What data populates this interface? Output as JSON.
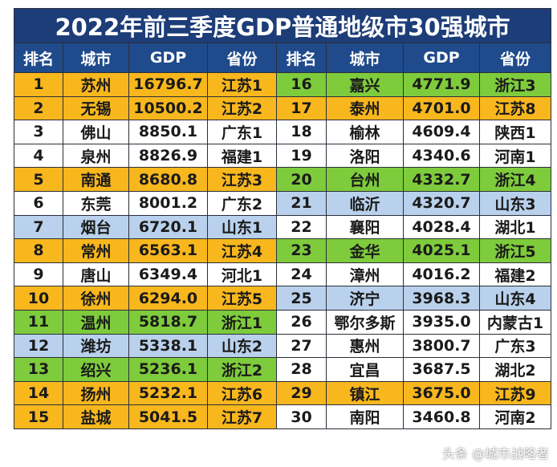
{
  "title": "2022年前三季度GDP普通地级市30强城市",
  "headers": [
    "排名",
    "城市",
    "GDP",
    "省份",
    "排名",
    "城市",
    "GDP",
    "省份"
  ],
  "colors": {
    "o": "#f8b71d",
    "g": "#7ecb3c",
    "b": "#b9d1ec",
    "w": "#ffffff"
  },
  "left": [
    {
      "rank": "1",
      "city": "苏州",
      "gdp": "16796.7",
      "prov": "江苏1",
      "color": "o"
    },
    {
      "rank": "2",
      "city": "无锡",
      "gdp": "10500.2",
      "prov": "江苏2",
      "color": "o"
    },
    {
      "rank": "3",
      "city": "佛山",
      "gdp": "8850.1",
      "prov": "广东1",
      "color": "w"
    },
    {
      "rank": "4",
      "city": "泉州",
      "gdp": "8826.9",
      "prov": "福建1",
      "color": "w"
    },
    {
      "rank": "5",
      "city": "南通",
      "gdp": "8680.8",
      "prov": "江苏3",
      "color": "o"
    },
    {
      "rank": "6",
      "city": "东莞",
      "gdp": "8001.2",
      "prov": "广东2",
      "color": "w"
    },
    {
      "rank": "7",
      "city": "烟台",
      "gdp": "6720.1",
      "prov": "山东1",
      "color": "b"
    },
    {
      "rank": "8",
      "city": "常州",
      "gdp": "6563.1",
      "prov": "江苏4",
      "color": "o"
    },
    {
      "rank": "9",
      "city": "唐山",
      "gdp": "6349.4",
      "prov": "河北1",
      "color": "w"
    },
    {
      "rank": "10",
      "city": "徐州",
      "gdp": "6294.0",
      "prov": "江苏5",
      "color": "o"
    },
    {
      "rank": "11",
      "city": "温州",
      "gdp": "5818.7",
      "prov": "浙江1",
      "color": "g"
    },
    {
      "rank": "12",
      "city": "潍坊",
      "gdp": "5338.1",
      "prov": "山东2",
      "color": "b"
    },
    {
      "rank": "13",
      "city": "绍兴",
      "gdp": "5236.1",
      "prov": "浙江2",
      "color": "g"
    },
    {
      "rank": "14",
      "city": "扬州",
      "gdp": "5232.1",
      "prov": "江苏6",
      "color": "o"
    },
    {
      "rank": "15",
      "city": "盐城",
      "gdp": "5041.5",
      "prov": "江苏7",
      "color": "o"
    }
  ],
  "right": [
    {
      "rank": "16",
      "city": "嘉兴",
      "gdp": "4771.9",
      "prov": "浙江3",
      "color": "g"
    },
    {
      "rank": "17",
      "city": "泰州",
      "gdp": "4701.0",
      "prov": "江苏8",
      "color": "o"
    },
    {
      "rank": "18",
      "city": "榆林",
      "gdp": "4609.4",
      "prov": "陕西1",
      "color": "w"
    },
    {
      "rank": "19",
      "city": "洛阳",
      "gdp": "4340.6",
      "prov": "河南1",
      "color": "w"
    },
    {
      "rank": "20",
      "city": "台州",
      "gdp": "4332.7",
      "prov": "浙江4",
      "color": "g"
    },
    {
      "rank": "21",
      "city": "临沂",
      "gdp": "4320.7",
      "prov": "山东3",
      "color": "b"
    },
    {
      "rank": "22",
      "city": "襄阳",
      "gdp": "4028.4",
      "prov": "湖北1",
      "color": "w"
    },
    {
      "rank": "23",
      "city": "金华",
      "gdp": "4025.1",
      "prov": "浙江5",
      "color": "g"
    },
    {
      "rank": "24",
      "city": "漳州",
      "gdp": "4016.2",
      "prov": "福建2",
      "color": "w"
    },
    {
      "rank": "25",
      "city": "济宁",
      "gdp": "3968.3",
      "prov": "山东4",
      "color": "b"
    },
    {
      "rank": "26",
      "city": "鄂尔多斯",
      "gdp": "3935.0",
      "prov": "内蒙古1",
      "color": "w"
    },
    {
      "rank": "27",
      "city": "惠州",
      "gdp": "3800.7",
      "prov": "广东3",
      "color": "w"
    },
    {
      "rank": "28",
      "city": "宜昌",
      "gdp": "3687.5",
      "prov": "湖北2",
      "color": "w"
    },
    {
      "rank": "29",
      "city": "镇江",
      "gdp": "3675.0",
      "prov": "江苏9",
      "color": "o"
    },
    {
      "rank": "30",
      "city": "南阳",
      "gdp": "3460.8",
      "prov": "河南2",
      "color": "w"
    }
  ],
  "watermark": "头条 @城市战略者"
}
